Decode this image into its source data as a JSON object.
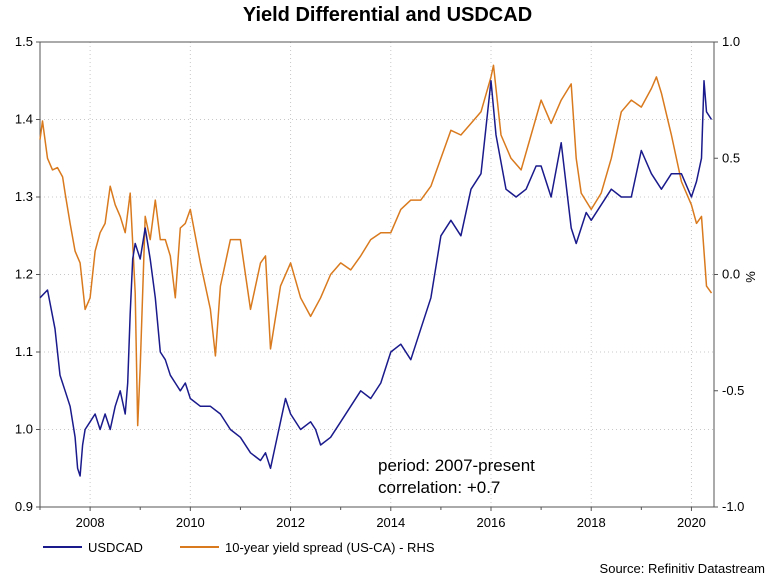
{
  "chart_data": {
    "type": "line",
    "title": "Yield Differential and USDCAD",
    "xlabel": "",
    "ylabel": "",
    "y2label": "%",
    "xlim": [
      2007,
      2020.45
    ],
    "ylim": [
      0.9,
      1.5
    ],
    "y2lim": [
      -1.0,
      1.0
    ],
    "x_ticks": [
      2008,
      2010,
      2012,
      2014,
      2016,
      2018,
      2020
    ],
    "x_tick_labels": [
      "2008",
      "2010",
      "2012",
      "2014",
      "2016",
      "2018",
      "2020"
    ],
    "y_ticks": [
      0.9,
      1.0,
      1.1,
      1.2,
      1.3,
      1.4,
      1.5
    ],
    "y_tick_labels": [
      "0.9",
      "1.0",
      "1.1",
      "1.2",
      "1.3",
      "1.4",
      "1.5"
    ],
    "y2_ticks": [
      -1.0,
      -0.5,
      0.0,
      0.5,
      1.0
    ],
    "y2_tick_labels": [
      "-1.0",
      "-0.5",
      "0.0",
      "0.5",
      "1.0"
    ],
    "grid": true,
    "legend_position": "bottom-left",
    "series": [
      {
        "name": "USDCAD",
        "axis": "left",
        "color": "#1a1a8c",
        "x": [
          2007.0,
          2007.15,
          2007.3,
          2007.4,
          2007.5,
          2007.6,
          2007.7,
          2007.75,
          2007.8,
          2007.85,
          2007.9,
          2008.0,
          2008.1,
          2008.2,
          2008.3,
          2008.4,
          2008.5,
          2008.6,
          2008.7,
          2008.75,
          2008.8,
          2008.85,
          2008.9,
          2009.0,
          2009.1,
          2009.2,
          2009.3,
          2009.4,
          2009.5,
          2009.6,
          2009.7,
          2009.8,
          2009.9,
          2010.0,
          2010.2,
          2010.4,
          2010.6,
          2010.8,
          2011.0,
          2011.2,
          2011.4,
          2011.5,
          2011.6,
          2011.7,
          2011.8,
          2011.9,
          2012.0,
          2012.2,
          2012.4,
          2012.5,
          2012.6,
          2012.8,
          2013.0,
          2013.2,
          2013.4,
          2013.6,
          2013.8,
          2014.0,
          2014.2,
          2014.4,
          2014.6,
          2014.8,
          2015.0,
          2015.2,
          2015.4,
          2015.6,
          2015.8,
          2016.0,
          2016.1,
          2016.3,
          2016.5,
          2016.7,
          2016.9,
          2017.0,
          2017.2,
          2017.4,
          2017.6,
          2017.7,
          2017.9,
          2018.0,
          2018.2,
          2018.4,
          2018.6,
          2018.8,
          2019.0,
          2019.2,
          2019.4,
          2019.6,
          2019.8,
          2020.0,
          2020.1,
          2020.2,
          2020.25,
          2020.3,
          2020.4
        ],
        "y": [
          1.17,
          1.18,
          1.13,
          1.07,
          1.05,
          1.03,
          0.99,
          0.95,
          0.94,
          0.98,
          1.0,
          1.01,
          1.02,
          1.0,
          1.02,
          1.0,
          1.03,
          1.05,
          1.02,
          1.06,
          1.15,
          1.22,
          1.24,
          1.22,
          1.26,
          1.22,
          1.17,
          1.1,
          1.09,
          1.07,
          1.06,
          1.05,
          1.06,
          1.04,
          1.03,
          1.03,
          1.02,
          1.0,
          0.99,
          0.97,
          0.96,
          0.97,
          0.95,
          0.98,
          1.01,
          1.04,
          1.02,
          1.0,
          1.01,
          1.0,
          0.98,
          0.99,
          1.01,
          1.03,
          1.05,
          1.04,
          1.06,
          1.1,
          1.11,
          1.09,
          1.13,
          1.17,
          1.25,
          1.27,
          1.25,
          1.31,
          1.33,
          1.45,
          1.38,
          1.31,
          1.3,
          1.31,
          1.34,
          1.34,
          1.3,
          1.37,
          1.26,
          1.24,
          1.28,
          1.27,
          1.29,
          1.31,
          1.3,
          1.3,
          1.36,
          1.33,
          1.31,
          1.33,
          1.33,
          1.3,
          1.32,
          1.35,
          1.45,
          1.41,
          1.4
        ]
      },
      {
        "name": "10-year yield spread (US-CA) - RHS",
        "axis": "right",
        "color": "#d97a1e",
        "x": [
          2007.0,
          2007.05,
          2007.15,
          2007.25,
          2007.35,
          2007.45,
          2007.5,
          2007.6,
          2007.7,
          2007.8,
          2007.9,
          2008.0,
          2008.1,
          2008.2,
          2008.3,
          2008.4,
          2008.5,
          2008.6,
          2008.7,
          2008.8,
          2008.9,
          2008.95,
          2009.0,
          2009.1,
          2009.2,
          2009.3,
          2009.4,
          2009.5,
          2009.6,
          2009.7,
          2009.8,
          2009.9,
          2010.0,
          2010.2,
          2010.4,
          2010.5,
          2010.6,
          2010.8,
          2011.0,
          2011.2,
          2011.4,
          2011.5,
          2011.6,
          2011.8,
          2012.0,
          2012.2,
          2012.4,
          2012.6,
          2012.8,
          2013.0,
          2013.2,
          2013.4,
          2013.6,
          2013.8,
          2014.0,
          2014.2,
          2014.4,
          2014.6,
          2014.8,
          2015.0,
          2015.2,
          2015.4,
          2015.6,
          2015.8,
          2016.0,
          2016.05,
          2016.2,
          2016.4,
          2016.6,
          2016.8,
          2017.0,
          2017.2,
          2017.4,
          2017.6,
          2017.7,
          2017.8,
          2018.0,
          2018.2,
          2018.4,
          2018.6,
          2018.8,
          2019.0,
          2019.2,
          2019.3,
          2019.4,
          2019.6,
          2019.8,
          2020.0,
          2020.1,
          2020.2,
          2020.3,
          2020.4
        ],
        "y": [
          0.58,
          0.66,
          0.5,
          0.45,
          0.46,
          0.42,
          0.35,
          0.22,
          0.1,
          0.05,
          -0.15,
          -0.1,
          0.1,
          0.18,
          0.22,
          0.38,
          0.3,
          0.25,
          0.18,
          0.35,
          -0.08,
          -0.65,
          -0.4,
          0.25,
          0.15,
          0.32,
          0.15,
          0.15,
          0.08,
          -0.1,
          0.2,
          0.22,
          0.28,
          0.05,
          -0.15,
          -0.35,
          -0.05,
          0.15,
          0.15,
          -0.15,
          0.05,
          0.08,
          -0.32,
          -0.05,
          0.05,
          -0.1,
          -0.18,
          -0.1,
          0.0,
          0.05,
          0.02,
          0.08,
          0.15,
          0.18,
          0.18,
          0.28,
          0.32,
          0.32,
          0.38,
          0.5,
          0.62,
          0.6,
          0.65,
          0.7,
          0.85,
          0.9,
          0.6,
          0.5,
          0.45,
          0.6,
          0.75,
          0.65,
          0.75,
          0.82,
          0.5,
          0.35,
          0.28,
          0.35,
          0.5,
          0.7,
          0.75,
          0.72,
          0.8,
          0.85,
          0.78,
          0.6,
          0.4,
          0.3,
          0.22,
          0.25,
          -0.05,
          -0.08
        ]
      }
    ],
    "annotations": [
      "period: 2007-present",
      "correlation: +0.7"
    ],
    "source": "Source: Refinitiv Datastream"
  }
}
